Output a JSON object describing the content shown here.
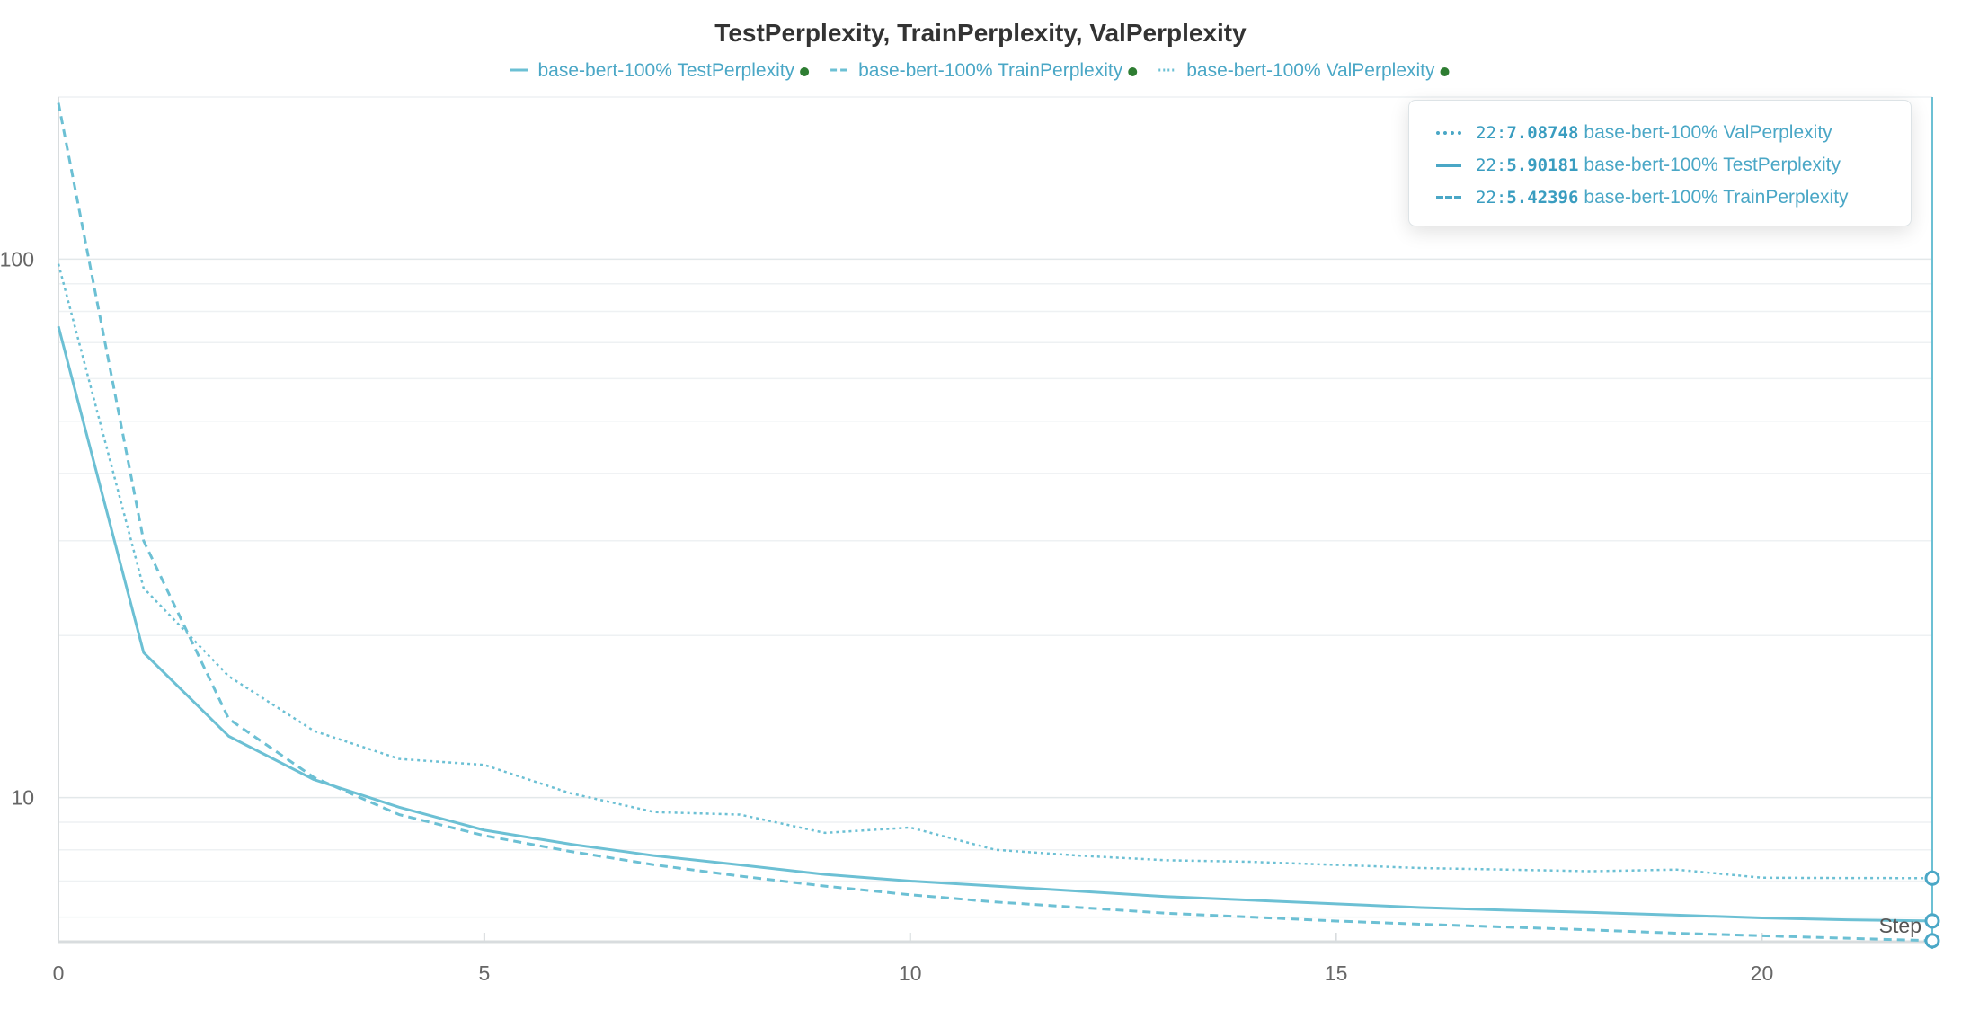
{
  "chart_data": {
    "type": "line",
    "title": "TestPerplexity, TrainPerplexity, ValPerplexity",
    "xlabel": "Step",
    "ylabel": "",
    "xlim": [
      0,
      22
    ],
    "ylim": [
      5.4,
      200
    ],
    "yscale": "log",
    "x_ticks": [
      0,
      5,
      10,
      15,
      20
    ],
    "x_tick_labels": [
      "0",
      "5",
      "10",
      "15",
      "20"
    ],
    "y_ticks": [
      10,
      100
    ],
    "y_tick_labels": [
      "10",
      "100"
    ],
    "grid": true,
    "legend": "top-center",
    "x": [
      0,
      1,
      2,
      3,
      4,
      5,
      6,
      7,
      8,
      9,
      10,
      11,
      12,
      13,
      14,
      15,
      16,
      17,
      18,
      19,
      20,
      21,
      22
    ],
    "series": [
      {
        "name": "base-bert-100% TestPerplexity",
        "style": "solid",
        "color": "#6cc0d4",
        "values": [
          75,
          18.6,
          13.0,
          10.8,
          9.6,
          8.7,
          8.2,
          7.8,
          7.5,
          7.2,
          7.0,
          6.85,
          6.7,
          6.55,
          6.45,
          6.35,
          6.25,
          6.18,
          6.12,
          6.05,
          5.98,
          5.93,
          5.90181
        ]
      },
      {
        "name": "base-bert-100% TrainPerplexity",
        "style": "dashed",
        "color": "#6cc0d4",
        "values": [
          195,
          30,
          14,
          10.9,
          9.3,
          8.5,
          7.95,
          7.5,
          7.15,
          6.85,
          6.6,
          6.4,
          6.25,
          6.1,
          6.0,
          5.9,
          5.82,
          5.75,
          5.68,
          5.6,
          5.54,
          5.48,
          5.42396
        ]
      },
      {
        "name": "base-bert-100% ValPerplexity",
        "style": "dotted",
        "color": "#6cc0d4",
        "values": [
          98,
          24.5,
          16.8,
          13.3,
          11.8,
          11.5,
          10.2,
          9.4,
          9.3,
          8.6,
          8.8,
          8.0,
          7.8,
          7.65,
          7.6,
          7.5,
          7.4,
          7.35,
          7.3,
          7.35,
          7.1,
          7.09,
          7.08748
        ]
      }
    ],
    "legend_dot_color": "#2e7d32",
    "hover": {
      "step": "22",
      "rows": [
        {
          "step": "22",
          "sep": ":",
          "value": "7.08748",
          "name": "base-bert-100% ValPerplexity",
          "style": "dotted"
        },
        {
          "step": "22",
          "sep": ":",
          "value": "5.90181",
          "name": "base-bert-100% TestPerplexity",
          "style": "solid"
        },
        {
          "step": "22",
          "sep": ":",
          "value": "5.42396",
          "name": "base-bert-100% TrainPerplexity",
          "style": "dashed"
        }
      ]
    }
  }
}
